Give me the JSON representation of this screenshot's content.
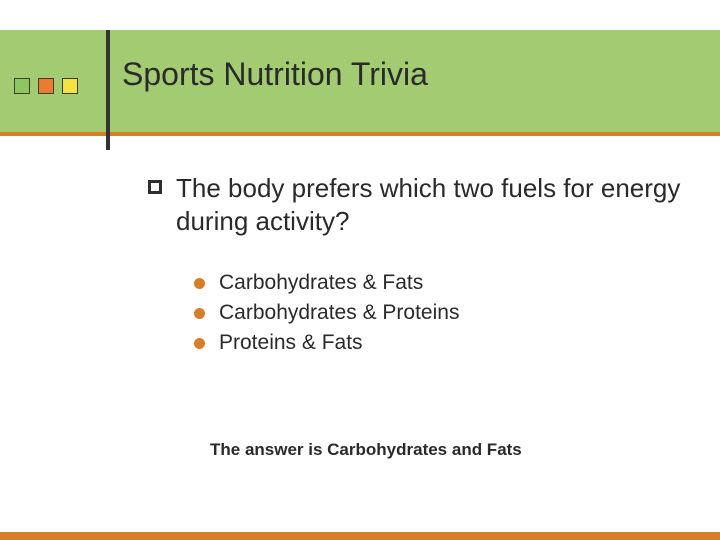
{
  "colors": {
    "green_band": "#a3cc72",
    "orange": "#d97d28",
    "square1_fill": "#8fc65f",
    "square2_fill": "#e97c2e",
    "square3_fill": "#f4e443",
    "dot_color": "#d97d28",
    "text": "#2a2a2a"
  },
  "title": "Sports Nutrition Trivia",
  "question": "The body prefers which two fuels for energy during activity?",
  "options": [
    "Carbohydrates & Fats",
    "Carbohydrates & Proteins",
    "Proteins & Fats"
  ],
  "answer": "The answer is Carbohydrates and Fats"
}
